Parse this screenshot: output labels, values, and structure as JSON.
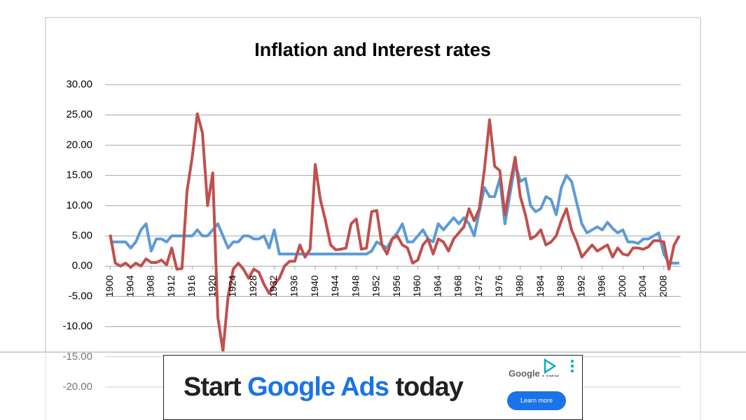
{
  "chart_data": {
    "type": "line",
    "title": "Inflation and Interest rates",
    "x": [
      1900,
      1901,
      1902,
      1903,
      1904,
      1905,
      1906,
      1907,
      1908,
      1909,
      1910,
      1911,
      1912,
      1913,
      1914,
      1915,
      1916,
      1917,
      1918,
      1919,
      1920,
      1921,
      1922,
      1923,
      1924,
      1925,
      1926,
      1927,
      1928,
      1929,
      1930,
      1931,
      1932,
      1933,
      1934,
      1935,
      1936,
      1937,
      1938,
      1939,
      1940,
      1941,
      1942,
      1943,
      1944,
      1945,
      1946,
      1947,
      1948,
      1949,
      1950,
      1951,
      1952,
      1953,
      1954,
      1955,
      1956,
      1957,
      1958,
      1959,
      1960,
      1961,
      1962,
      1963,
      1964,
      1965,
      1966,
      1967,
      1968,
      1969,
      1970,
      1971,
      1972,
      1973,
      1974,
      1975,
      1976,
      1977,
      1978,
      1979,
      1980,
      1981,
      1982,
      1983,
      1984,
      1985,
      1986,
      1987,
      1988,
      1989,
      1990,
      1991,
      1992,
      1993,
      1994,
      1995,
      1996,
      1997,
      1998,
      1999,
      2000,
      2001,
      2002,
      2003,
      2004,
      2005,
      2006,
      2007,
      2008,
      2009,
      2010,
      2011
    ],
    "series": [
      {
        "color": "#5b9bd5",
        "values": [
          4,
          4,
          4,
          4,
          3,
          4,
          6,
          7,
          2.5,
          4.5,
          4.5,
          4,
          5,
          5,
          5,
          5,
          5,
          6,
          5,
          5,
          6,
          7,
          5,
          3,
          4,
          4,
          5,
          5,
          4.5,
          4.5,
          5,
          3,
          6,
          2,
          2,
          2,
          2,
          2,
          2,
          2,
          2,
          2,
          2,
          2,
          2,
          2,
          2,
          2,
          2,
          2,
          2,
          2.5,
          4,
          3.5,
          3,
          4.5,
          5.5,
          7,
          4,
          4,
          5,
          6,
          4.5,
          4,
          7,
          6,
          7,
          8,
          7,
          8,
          7,
          5,
          9,
          13,
          11.5,
          11.5,
          14.5,
          7,
          12,
          17,
          14,
          14.5,
          10,
          9,
          9.5,
          11.5,
          11,
          8.5,
          13,
          15,
          14,
          10.5,
          7,
          5.5,
          6,
          6.5,
          6,
          7.25,
          6.25,
          5.5,
          6,
          4,
          4,
          3.75,
          4.5,
          4.5,
          5,
          5.5,
          2,
          0.5,
          0.5,
          0.5
        ]
      },
      {
        "color": "#c0504d",
        "values": [
          5.2,
          0.5,
          0,
          0.5,
          -0.2,
          0.5,
          0,
          1.2,
          0.6,
          0.6,
          1,
          0.2,
          3,
          -0.5,
          -0.4,
          12.5,
          18,
          25.2,
          22,
          10,
          15.4,
          -8.5,
          -14,
          -5,
          -0.5,
          0.5,
          -0.5,
          -2,
          -0.5,
          -1,
          -3,
          -4.5,
          -3,
          -2,
          0,
          0.8,
          0.8,
          3.5,
          1.5,
          2.8,
          16.8,
          11,
          7.5,
          3.5,
          2.7,
          2.8,
          3,
          7,
          7.8,
          2.8,
          3,
          9,
          9.2,
          3.5,
          2,
          4.5,
          5,
          3.5,
          3,
          0.5,
          1,
          3.5,
          4.5,
          2,
          4.5,
          4,
          2.5,
          4.5,
          5.5,
          6.5,
          9.5,
          7.5,
          9.5,
          16,
          24.2,
          16.5,
          15.8,
          8.5,
          13.5,
          18,
          11.5,
          8.5,
          4.5,
          5,
          6,
          3.5,
          4,
          5,
          7.5,
          9.5,
          6,
          4,
          1.5,
          2.5,
          3.5,
          2.5,
          3,
          3.5,
          1.5,
          3,
          2,
          1.8,
          3,
          3,
          2.8,
          3.2,
          4.2,
          4.2,
          4,
          -0.5,
          3.5,
          5
        ]
      }
    ],
    "xlim": [
      1899,
      2012
    ],
    "xticks": [
      1900,
      1904,
      1908,
      1912,
      1916,
      1920,
      1924,
      1928,
      1932,
      1936,
      1940,
      1944,
      1948,
      1952,
      1956,
      1960,
      1964,
      1968,
      1972,
      1976,
      1980,
      1984,
      1988,
      1992,
      1996,
      2000,
      2004,
      2008
    ],
    "ylim": [
      -20,
      30
    ],
    "yticks": [
      {
        "value": 30,
        "label": "30.00"
      },
      {
        "value": 25,
        "label": "25.00"
      },
      {
        "value": 20,
        "label": "20.00"
      },
      {
        "value": 15,
        "label": "15.00"
      },
      {
        "value": 10,
        "label": "10.00"
      },
      {
        "value": 5,
        "label": "5.00"
      },
      {
        "value": 0,
        "label": "0.00"
      },
      {
        "value": -5,
        "label": "-5.00"
      },
      {
        "value": -10,
        "label": "-10.00"
      },
      {
        "value": -15,
        "label": "-15.00"
      },
      {
        "value": -20,
        "label": "-20.00"
      }
    ],
    "grid": true
  },
  "ad": {
    "headline": [
      "Start",
      "Google Ads",
      "today"
    ],
    "logo": "Google Ads",
    "button": "Learn more"
  }
}
